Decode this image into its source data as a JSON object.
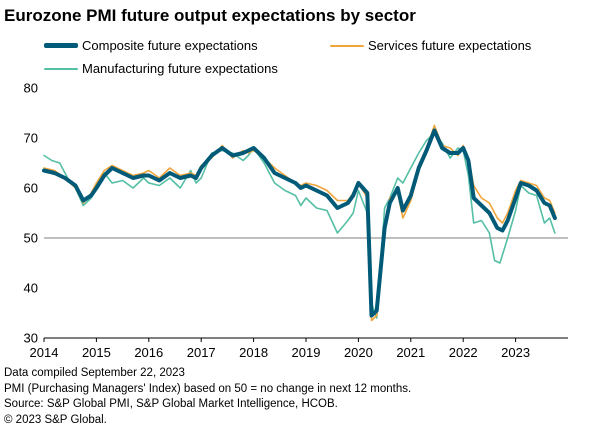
{
  "chart_data": {
    "type": "line",
    "title": "Eurozone PMI future output expectations by sector",
    "xlabel": "",
    "ylabel": "",
    "x_range": [
      2014.0,
      2024.0
    ],
    "ylim": [
      30,
      80
    ],
    "yticks": [
      30,
      40,
      50,
      60,
      70,
      80
    ],
    "xticks": [
      "2014",
      "2015",
      "2016",
      "2017",
      "2018",
      "2019",
      "2020",
      "2021",
      "2022",
      "2023"
    ],
    "reference_line": 50,
    "grid": false,
    "legend_position": "top",
    "series": [
      {
        "name": "Composite future expectations",
        "color": "#005a78",
        "points": [
          [
            2014.0,
            63.5
          ],
          [
            2014.2,
            63.0
          ],
          [
            2014.4,
            62.0
          ],
          [
            2014.6,
            60.5
          ],
          [
            2014.75,
            57.5
          ],
          [
            2014.9,
            58.5
          ],
          [
            2015.0,
            60.0
          ],
          [
            2015.15,
            62.5
          ],
          [
            2015.3,
            64.0
          ],
          [
            2015.5,
            63.0
          ],
          [
            2015.7,
            62.0
          ],
          [
            2015.9,
            62.5
          ],
          [
            2016.0,
            62.5
          ],
          [
            2016.2,
            61.5
          ],
          [
            2016.4,
            63.0
          ],
          [
            2016.6,
            62.0
          ],
          [
            2016.8,
            62.5
          ],
          [
            2016.9,
            62.0
          ],
          [
            2017.0,
            64.0
          ],
          [
            2017.2,
            66.5
          ],
          [
            2017.4,
            68.0
          ],
          [
            2017.6,
            66.5
          ],
          [
            2017.8,
            67.0
          ],
          [
            2017.9,
            67.5
          ],
          [
            2018.0,
            68.0
          ],
          [
            2018.2,
            66.0
          ],
          [
            2018.4,
            63.0
          ],
          [
            2018.6,
            62.0
          ],
          [
            2018.8,
            61.0
          ],
          [
            2018.9,
            60.0
          ],
          [
            2019.0,
            60.5
          ],
          [
            2019.2,
            59.5
          ],
          [
            2019.4,
            58.5
          ],
          [
            2019.6,
            56.0
          ],
          [
            2019.8,
            57.0
          ],
          [
            2019.9,
            58.5
          ],
          [
            2020.0,
            61.0
          ],
          [
            2020.17,
            59.0
          ],
          [
            2020.25,
            34.5
          ],
          [
            2020.35,
            35.5
          ],
          [
            2020.5,
            52.0
          ],
          [
            2020.6,
            57.0
          ],
          [
            2020.75,
            60.0
          ],
          [
            2020.85,
            55.5
          ],
          [
            2021.0,
            58.5
          ],
          [
            2021.15,
            64.0
          ],
          [
            2021.3,
            67.5
          ],
          [
            2021.45,
            71.5
          ],
          [
            2021.6,
            68.0
          ],
          [
            2021.75,
            67.0
          ],
          [
            2021.9,
            67.0
          ],
          [
            2022.0,
            68.0
          ],
          [
            2022.1,
            65.5
          ],
          [
            2022.2,
            58.0
          ],
          [
            2022.35,
            56.5
          ],
          [
            2022.5,
            55.0
          ],
          [
            2022.65,
            52.0
          ],
          [
            2022.75,
            51.5
          ],
          [
            2022.85,
            53.5
          ],
          [
            2023.0,
            58.0
          ],
          [
            2023.1,
            61.0
          ],
          [
            2023.25,
            60.5
          ],
          [
            2023.4,
            59.5
          ],
          [
            2023.55,
            57.0
          ],
          [
            2023.65,
            56.5
          ],
          [
            2023.75,
            54.0
          ]
        ]
      },
      {
        "name": "Services future expectations",
        "color": "#f0a53c",
        "points": [
          [
            2014.0,
            64.0
          ],
          [
            2014.2,
            63.5
          ],
          [
            2014.4,
            62.0
          ],
          [
            2014.6,
            60.0
          ],
          [
            2014.75,
            57.0
          ],
          [
            2014.9,
            59.0
          ],
          [
            2015.0,
            61.0
          ],
          [
            2015.15,
            63.5
          ],
          [
            2015.3,
            64.5
          ],
          [
            2015.5,
            63.5
          ],
          [
            2015.7,
            62.5
          ],
          [
            2015.9,
            63.0
          ],
          [
            2016.0,
            63.5
          ],
          [
            2016.2,
            62.0
          ],
          [
            2016.4,
            64.0
          ],
          [
            2016.6,
            62.5
          ],
          [
            2016.8,
            63.0
          ],
          [
            2016.9,
            62.5
          ],
          [
            2017.0,
            64.5
          ],
          [
            2017.2,
            66.0
          ],
          [
            2017.4,
            68.5
          ],
          [
            2017.6,
            66.0
          ],
          [
            2017.8,
            67.5
          ],
          [
            2017.9,
            67.0
          ],
          [
            2018.0,
            67.5
          ],
          [
            2018.2,
            66.0
          ],
          [
            2018.4,
            64.0
          ],
          [
            2018.6,
            62.5
          ],
          [
            2018.8,
            61.0
          ],
          [
            2018.9,
            60.5
          ],
          [
            2019.0,
            61.0
          ],
          [
            2019.2,
            60.5
          ],
          [
            2019.4,
            59.5
          ],
          [
            2019.6,
            57.5
          ],
          [
            2019.8,
            57.5
          ],
          [
            2019.9,
            59.0
          ],
          [
            2020.0,
            61.0
          ],
          [
            2020.17,
            58.0
          ],
          [
            2020.25,
            33.5
          ],
          [
            2020.35,
            34.5
          ],
          [
            2020.5,
            51.5
          ],
          [
            2020.6,
            58.0
          ],
          [
            2020.75,
            59.0
          ],
          [
            2020.85,
            54.0
          ],
          [
            2021.0,
            57.5
          ],
          [
            2021.15,
            63.5
          ],
          [
            2021.3,
            68.0
          ],
          [
            2021.45,
            72.5
          ],
          [
            2021.6,
            68.5
          ],
          [
            2021.75,
            68.0
          ],
          [
            2021.9,
            66.5
          ],
          [
            2022.0,
            68.5
          ],
          [
            2022.1,
            66.0
          ],
          [
            2022.2,
            60.5
          ],
          [
            2022.35,
            58.0
          ],
          [
            2022.5,
            57.0
          ],
          [
            2022.65,
            54.0
          ],
          [
            2022.75,
            53.0
          ],
          [
            2022.85,
            55.0
          ],
          [
            2023.0,
            59.5
          ],
          [
            2023.1,
            61.5
          ],
          [
            2023.25,
            61.0
          ],
          [
            2023.4,
            60.5
          ],
          [
            2023.55,
            58.0
          ],
          [
            2023.65,
            57.5
          ],
          [
            2023.75,
            55.0
          ]
        ]
      },
      {
        "name": "Manufacturing future expectations",
        "color": "#55bfa5",
        "points": [
          [
            2014.0,
            66.5
          ],
          [
            2014.15,
            65.5
          ],
          [
            2014.3,
            65.0
          ],
          [
            2014.45,
            62.0
          ],
          [
            2014.6,
            60.0
          ],
          [
            2014.75,
            56.5
          ],
          [
            2014.9,
            58.0
          ],
          [
            2015.0,
            60.0
          ],
          [
            2015.15,
            63.0
          ],
          [
            2015.3,
            61.0
          ],
          [
            2015.5,
            61.5
          ],
          [
            2015.7,
            60.0
          ],
          [
            2015.9,
            62.0
          ],
          [
            2016.0,
            61.0
          ],
          [
            2016.2,
            60.5
          ],
          [
            2016.4,
            62.0
          ],
          [
            2016.6,
            60.0
          ],
          [
            2016.8,
            63.5
          ],
          [
            2016.9,
            61.0
          ],
          [
            2017.0,
            62.0
          ],
          [
            2017.2,
            67.0
          ],
          [
            2017.4,
            67.5
          ],
          [
            2017.6,
            67.0
          ],
          [
            2017.8,
            65.5
          ],
          [
            2017.9,
            66.5
          ],
          [
            2018.0,
            68.0
          ],
          [
            2018.2,
            65.0
          ],
          [
            2018.4,
            61.0
          ],
          [
            2018.6,
            59.5
          ],
          [
            2018.8,
            58.5
          ],
          [
            2018.9,
            56.5
          ],
          [
            2019.0,
            58.0
          ],
          [
            2019.2,
            56.0
          ],
          [
            2019.4,
            55.5
          ],
          [
            2019.6,
            51.0
          ],
          [
            2019.8,
            53.5
          ],
          [
            2019.9,
            55.0
          ],
          [
            2020.0,
            59.5
          ],
          [
            2020.17,
            55.0
          ],
          [
            2020.25,
            37.0
          ],
          [
            2020.35,
            34.0
          ],
          [
            2020.5,
            56.0
          ],
          [
            2020.6,
            58.0
          ],
          [
            2020.75,
            62.0
          ],
          [
            2020.85,
            61.0
          ],
          [
            2021.0,
            64.0
          ],
          [
            2021.15,
            67.0
          ],
          [
            2021.3,
            69.5
          ],
          [
            2021.45,
            71.0
          ],
          [
            2021.6,
            69.0
          ],
          [
            2021.75,
            66.0
          ],
          [
            2021.9,
            68.0
          ],
          [
            2022.0,
            67.5
          ],
          [
            2022.1,
            62.5
          ],
          [
            2022.2,
            53.0
          ],
          [
            2022.35,
            53.5
          ],
          [
            2022.5,
            51.0
          ],
          [
            2022.6,
            45.5
          ],
          [
            2022.7,
            45.0
          ],
          [
            2022.85,
            50.0
          ],
          [
            2023.0,
            55.5
          ],
          [
            2023.1,
            60.5
          ],
          [
            2023.25,
            59.0
          ],
          [
            2023.4,
            58.5
          ],
          [
            2023.55,
            53.0
          ],
          [
            2023.65,
            54.0
          ],
          [
            2023.75,
            51.0
          ]
        ]
      }
    ]
  },
  "footer": {
    "line1": "Data compiled September 22, 2023",
    "line2": "PMI (Purchasing Managers' Index) based on 50 = no change in next 12 months.",
    "line3": "Source: S&P Global PMI, S&P Global Market Intelligence, HCOB.",
    "line4": "© 2023 S&P Global."
  }
}
